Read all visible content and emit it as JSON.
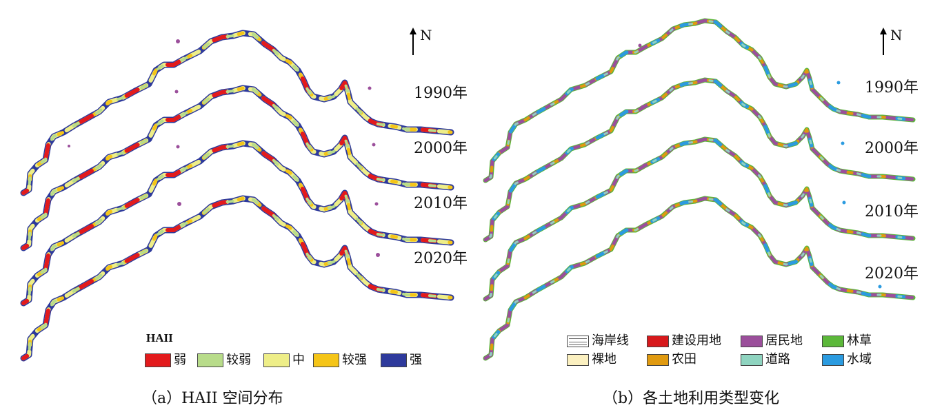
{
  "colors": {
    "weak": "#e31a1c",
    "weaker": "#b8dc8a",
    "medium": "#eeee88",
    "stronger": "#f5c518",
    "strong": "#2e3a9c",
    "coastline": "#ffffff",
    "construction": "#d7191c",
    "residential": "#9b4f9b",
    "forest": "#5cb83a",
    "bare": "#fbf0c0",
    "farmland": "#e09a10",
    "road": "#8fd4c0",
    "water": "#2b9be0"
  },
  "panel_a": {
    "north_label": "N",
    "years": [
      "1990年",
      "2000年",
      "2010年",
      "2020年"
    ],
    "legend_title": "HAII",
    "legend": [
      {
        "label": "弱",
        "color": "#e31a1c"
      },
      {
        "label": "较弱",
        "color": "#b8dc8a"
      },
      {
        "label": "中",
        "color": "#eeee88"
      },
      {
        "label": "较强",
        "color": "#f5c518"
      },
      {
        "label": "强",
        "color": "#2e3a9c"
      }
    ],
    "caption": "（a）HAII 空间分布"
  },
  "panel_b": {
    "north_label": "N",
    "years": [
      "1990年",
      "2000年",
      "2010年",
      "2020年"
    ],
    "legend": [
      {
        "label": "海岸线",
        "color": "#ffffff",
        "icon": "coastline-line-icon"
      },
      {
        "label": "建设用地",
        "color": "#d7191c"
      },
      {
        "label": "居民地",
        "color": "#9b4f9b"
      },
      {
        "label": "林草",
        "color": "#5cb83a"
      },
      {
        "label": "裸地",
        "color": "#fbf0c0"
      },
      {
        "label": "农田",
        "color": "#e09a10"
      },
      {
        "label": "道路",
        "color": "#8fd4c0"
      },
      {
        "label": "水域",
        "color": "#2b9be0"
      }
    ],
    "caption": "（b）各土地利用类型变化"
  }
}
